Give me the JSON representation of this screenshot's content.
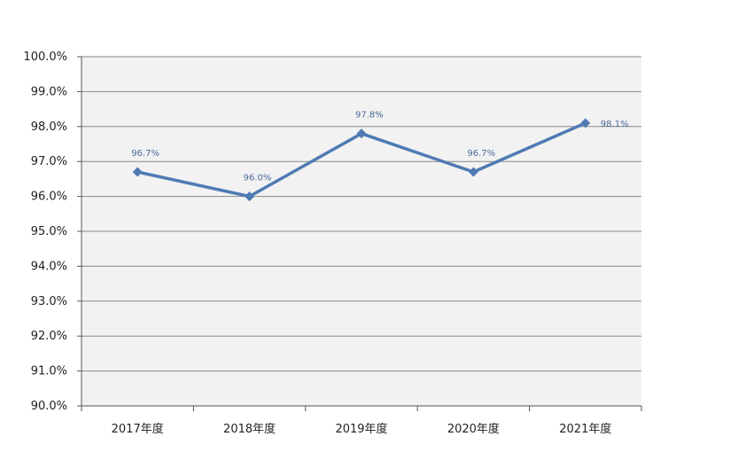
{
  "chart_data": {
    "type": "line",
    "categories": [
      "2017年度",
      "2018年度",
      "2019年度",
      "2020年度",
      "2021年度"
    ],
    "series": [
      {
        "values": [
          96.7,
          96.0,
          97.8,
          96.7,
          98.1
        ],
        "data_labels": [
          "96.7%",
          "96.0%",
          "97.8%",
          "96.7%",
          "98.1%"
        ],
        "color": "#4f7bb4"
      }
    ],
    "y_ticks": [
      "90.0%",
      "91.0%",
      "92.0%",
      "93.0%",
      "94.0%",
      "95.0%",
      "96.0%",
      "97.0%",
      "98.0%",
      "99.0%",
      "100.0%"
    ],
    "ylim": [
      90,
      100
    ],
    "grid": true,
    "legend": "none",
    "colors": {
      "plot_bg": "#f2f2f2",
      "grid": "#888888",
      "line": "#4f7bb4"
    }
  }
}
